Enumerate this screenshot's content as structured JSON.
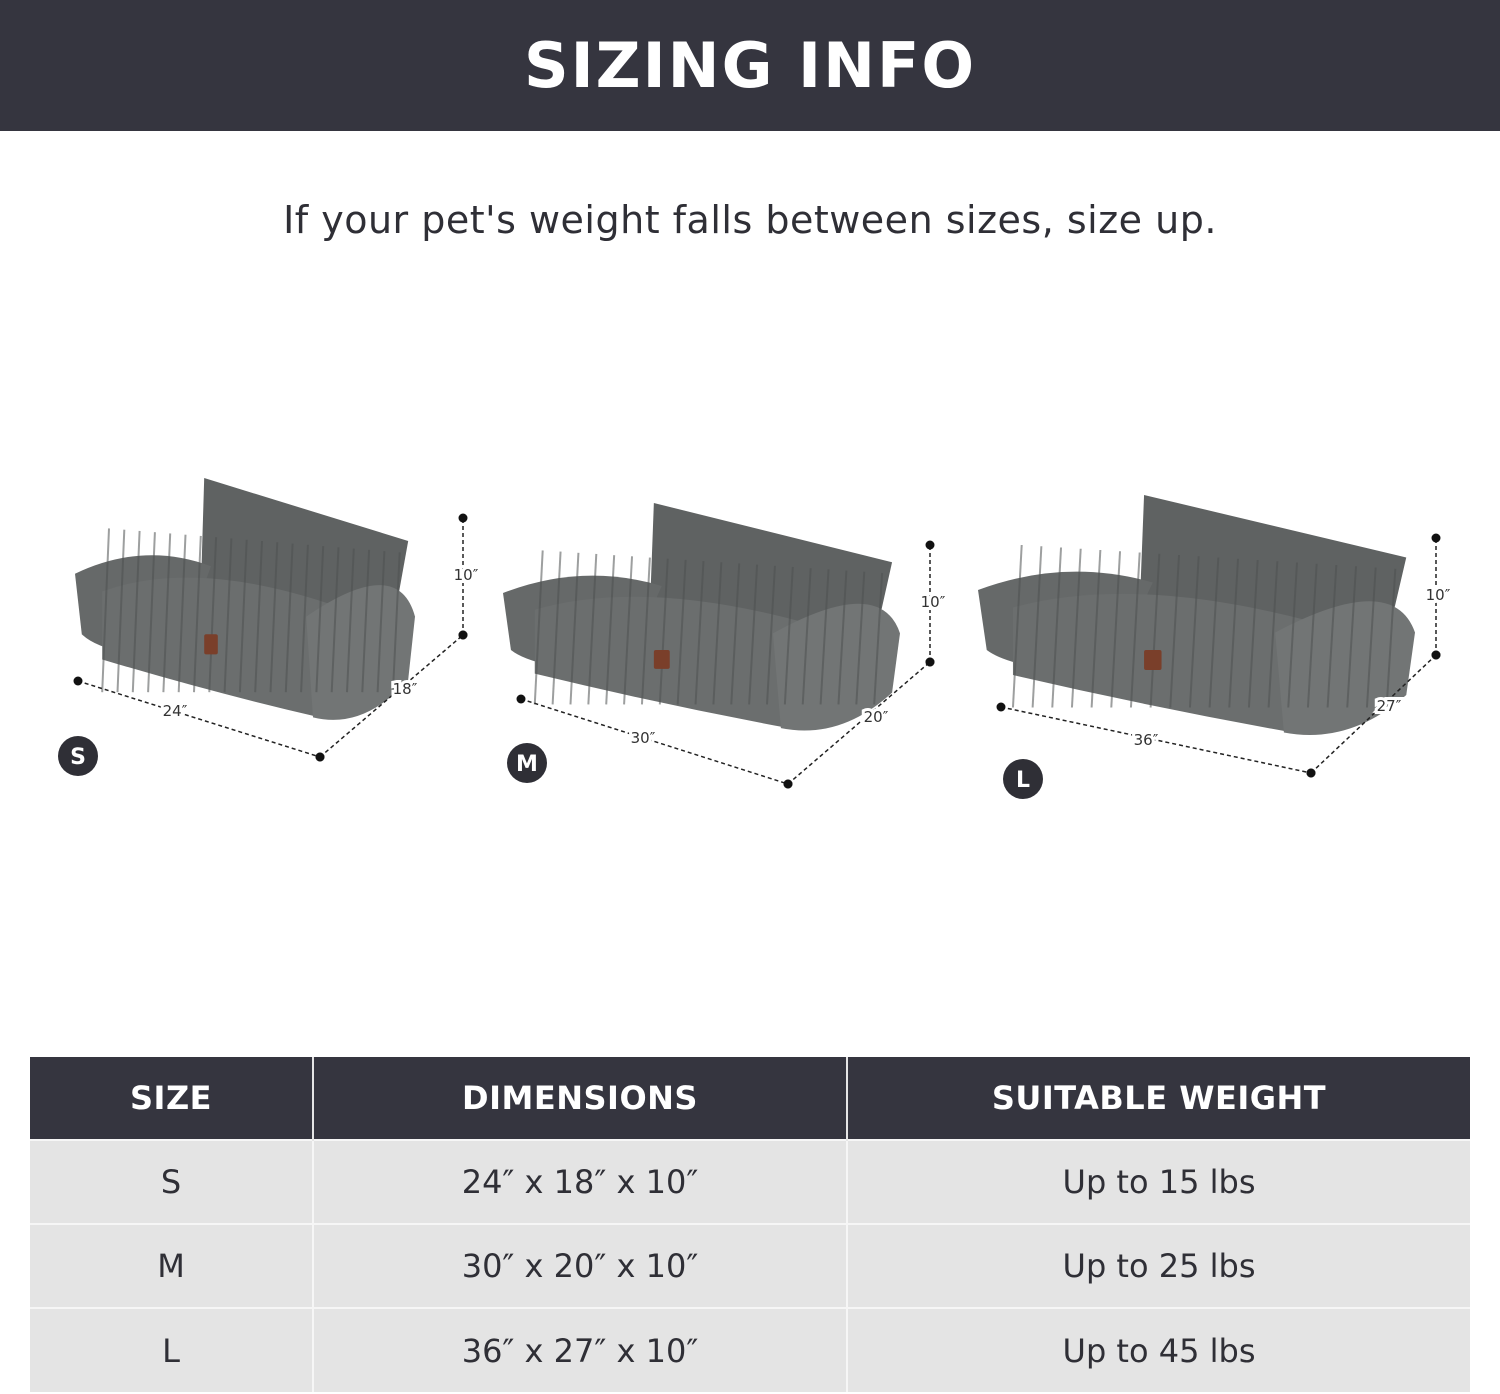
{
  "header": {
    "title": "SIZING INFO"
  },
  "subtitle": "If your pet's weight falls between sizes, size up.",
  "beds": [
    {
      "size": "S",
      "width": "24″",
      "depth": "18″",
      "height": "10″"
    },
    {
      "size": "M",
      "width": "30″",
      "depth": "20″",
      "height": "10″"
    },
    {
      "size": "L",
      "width": "36″",
      "depth": "27″",
      "height": "10″"
    }
  ],
  "table": {
    "headers": [
      "SIZE",
      "DIMENSIONS",
      "SUITABLE WEIGHT"
    ],
    "rows": [
      [
        "S",
        "24″ x 18″ x 10″",
        "Up to 15 lbs"
      ],
      [
        "M",
        "30″ x 20″ x 10″",
        "Up to 25 lbs"
      ],
      [
        "L",
        "36″ x 27″ x 10″",
        "Up to 45 lbs"
      ]
    ]
  },
  "colors": {
    "banner": "#35353f",
    "bed_fabric": "#6b6e6e",
    "table_row": "#e4e4e4",
    "badge": "#2f2f36"
  }
}
